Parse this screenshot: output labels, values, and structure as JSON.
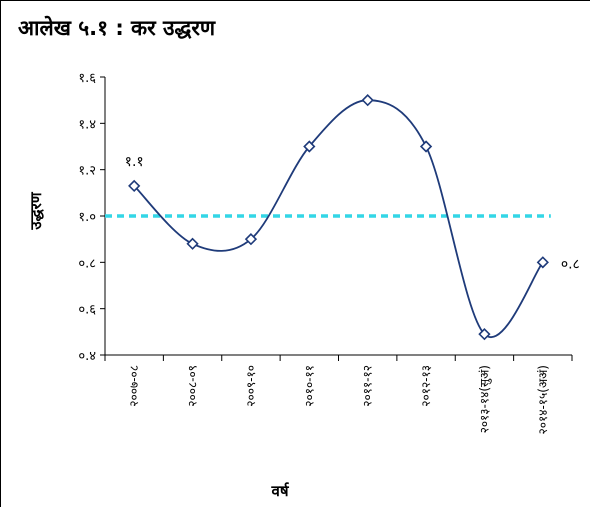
{
  "figure_title": "आलेख ५.१ : कर उद्धरण",
  "colors": {
    "series": "#1f3b7a",
    "reference": "#33d6e6",
    "axis": "#000000"
  },
  "chart_data": {
    "type": "line",
    "title": "आलेख ५.१ : कर उद्धरण",
    "xlabel": "वर्ष",
    "ylabel": "उद्धरण",
    "ylim": [
      0.4,
      1.6
    ],
    "yticks": [
      0.4,
      0.6,
      0.8,
      1.0,
      1.2,
      1.4,
      1.6
    ],
    "ytick_labels": [
      "०.४",
      "०.६",
      "०.८",
      "१.०",
      "१.२",
      "१.४",
      "१.६"
    ],
    "categories": [
      "२००७-०८",
      "२००८-०९",
      "२००९-१०",
      "२०१०-११",
      "२०११-१२",
      "२०१२-१३",
      "२०१३-१४(सुअं)",
      "२०१४-१५(अअं)"
    ],
    "series": [
      {
        "values": [
          1.13,
          0.88,
          0.9,
          1.3,
          1.5,
          1.3,
          0.49,
          0.8
        ]
      }
    ],
    "reference_line": 1.0,
    "smooth": true,
    "grid": false,
    "data_labels": [
      {
        "index": 0,
        "text": "१.१"
      },
      {
        "index": 7,
        "text": "०.८"
      }
    ]
  }
}
